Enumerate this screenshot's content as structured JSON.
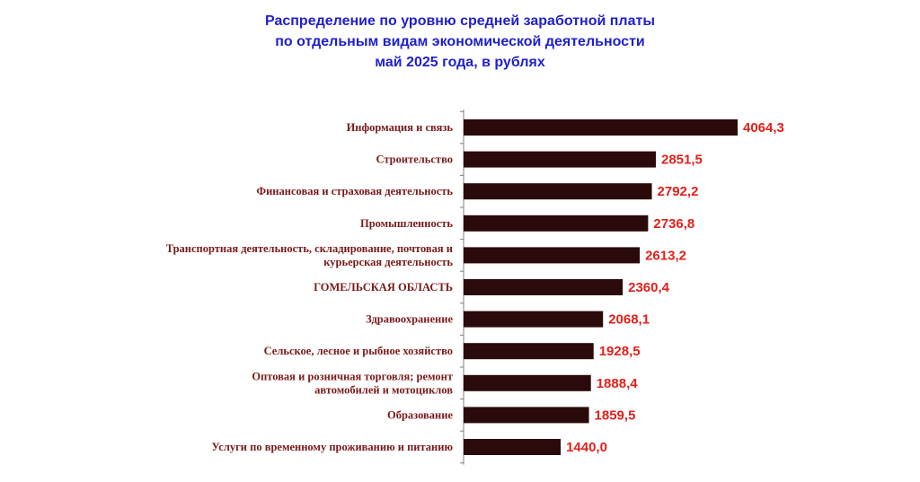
{
  "chart_data": {
    "type": "bar",
    "orientation": "horizontal",
    "title_lines": [
      "Распределение по уровню средней заработной платы",
      "по отдельным видам экономической деятельности",
      "май 2025 года, в рублях"
    ],
    "categories": [
      [
        "Информация и связь"
      ],
      [
        "Строительство"
      ],
      [
        "Финансовая и страховая деятельность"
      ],
      [
        "Промышленность"
      ],
      [
        "Транспортная деятельность, складирование, почтовая и",
        "курьерская деятельность"
      ],
      [
        "ГОМЕЛЬСКАЯ ОБЛАСТЬ"
      ],
      [
        "Здравоохранение"
      ],
      [
        "Сельское, лесное и рыбное хозяйство"
      ],
      [
        "Оптовая и розничная торговля; ремонт",
        "автомобилей и мотоциклов"
      ],
      [
        "Образование"
      ],
      [
        "Услуги по временному проживанию и питанию"
      ]
    ],
    "values": [
      4064.3,
      2851.5,
      2792.2,
      2736.8,
      2613.2,
      2360.4,
      2068.1,
      1928.5,
      1888.4,
      1859.5,
      1440.0
    ],
    "value_labels": [
      "4064,3",
      "2851,5",
      "2792,2",
      "2736,8",
      "2613,2",
      "2360,4",
      "2068,1",
      "1928,5",
      "1888,4",
      "1859,5",
      "1440,0"
    ],
    "xlim": [
      0,
      4064.3
    ],
    "grid": false,
    "colors": {
      "bar": "#2a0a0a",
      "value_label": "#e0211b",
      "category_label": "#7a1a1a",
      "title": "#1f1fd0"
    }
  }
}
